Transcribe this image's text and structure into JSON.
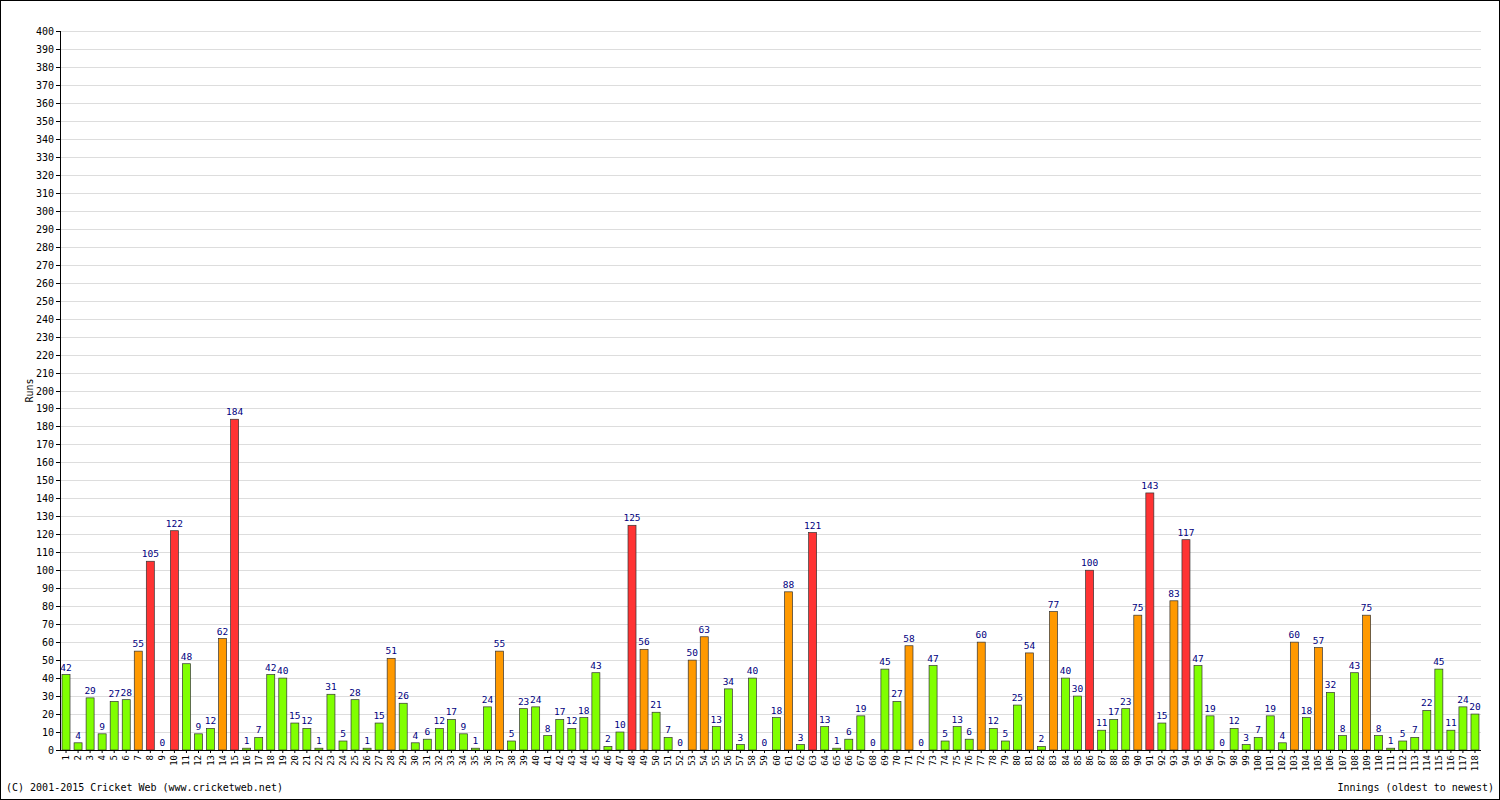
{
  "chart_data": {
    "type": "bar",
    "y_label": "Runs",
    "x_label": "Innings (oldest to newest)",
    "annotations": [
      "(C) 2001-2015 Cricket Web (www.cricketweb.net)"
    ],
    "categories": [
      "1",
      "2",
      "3",
      "4",
      "5",
      "6",
      "7",
      "8",
      "9",
      "10",
      "11",
      "12",
      "13",
      "14",
      "15",
      "16",
      "17",
      "18",
      "19",
      "20",
      "21",
      "22",
      "23",
      "24",
      "25",
      "26",
      "27",
      "28",
      "29",
      "30",
      "31",
      "32",
      "33",
      "34",
      "35",
      "36",
      "37",
      "38",
      "39",
      "40",
      "41",
      "42",
      "43",
      "44",
      "45",
      "46",
      "47",
      "48",
      "49",
      "50",
      "51",
      "52",
      "53",
      "54",
      "55",
      "56",
      "57",
      "58",
      "59",
      "60",
      "61",
      "62",
      "63",
      "64",
      "65",
      "66",
      "67",
      "68",
      "69",
      "70",
      "71",
      "72",
      "73",
      "74",
      "75",
      "76",
      "77",
      "78",
      "79",
      "80",
      "81",
      "82",
      "83",
      "84",
      "85",
      "86",
      "87",
      "88",
      "89",
      "90",
      "91",
      "92",
      "93",
      "94",
      "95",
      "96",
      "97",
      "98",
      "99",
      "100",
      "101",
      "102",
      "103",
      "104",
      "105",
      "106",
      "107",
      "108",
      "109",
      "110",
      "111",
      "112",
      "113",
      "114",
      "115",
      "116",
      "117",
      "118"
    ],
    "values": [
      42,
      4,
      29,
      9,
      27,
      28,
      55,
      105,
      0,
      122,
      48,
      9,
      12,
      62,
      184,
      1,
      7,
      42,
      40,
      15,
      12,
      1,
      31,
      5,
      28,
      1,
      15,
      51,
      26,
      4,
      6,
      12,
      17,
      9,
      1,
      24,
      55,
      5,
      23,
      24,
      8,
      17,
      12,
      18,
      43,
      2,
      10,
      125,
      56,
      21,
      7,
      0,
      50,
      63,
      13,
      34,
      3,
      40,
      0,
      18,
      88,
      3,
      121,
      13,
      1,
      6,
      19,
      0,
      45,
      27,
      58,
      0,
      47,
      5,
      13,
      6,
      60,
      12,
      5,
      25,
      54,
      2,
      77,
      40,
      30,
      100,
      11,
      17,
      23,
      75,
      143,
      15,
      83,
      117,
      47,
      19,
      0,
      12,
      3,
      7,
      19,
      4,
      60,
      18,
      57,
      32,
      8,
      43,
      75,
      8,
      1,
      5,
      7,
      22,
      45,
      11,
      24,
      20
    ],
    "colors": [
      "#80ff00",
      "#80ff00",
      "#80ff00",
      "#80ff00",
      "#80ff00",
      "#80ff00",
      "#ff9900",
      "#ff3333",
      "#80ff00",
      "#ff3333",
      "#80ff00",
      "#80ff00",
      "#80ff00",
      "#ff9900",
      "#ff3333",
      "#80ff00",
      "#80ff00",
      "#80ff00",
      "#80ff00",
      "#80ff00",
      "#80ff00",
      "#80ff00",
      "#80ff00",
      "#80ff00",
      "#80ff00",
      "#80ff00",
      "#80ff00",
      "#ff9900",
      "#80ff00",
      "#80ff00",
      "#80ff00",
      "#80ff00",
      "#80ff00",
      "#80ff00",
      "#80ff00",
      "#80ff00",
      "#ff9900",
      "#80ff00",
      "#80ff00",
      "#80ff00",
      "#80ff00",
      "#80ff00",
      "#80ff00",
      "#80ff00",
      "#80ff00",
      "#80ff00",
      "#80ff00",
      "#ff3333",
      "#ff9900",
      "#80ff00",
      "#80ff00",
      "#80ff00",
      "#ff9900",
      "#ff9900",
      "#80ff00",
      "#80ff00",
      "#80ff00",
      "#80ff00",
      "#80ff00",
      "#80ff00",
      "#ff9900",
      "#80ff00",
      "#ff3333",
      "#80ff00",
      "#80ff00",
      "#80ff00",
      "#80ff00",
      "#80ff00",
      "#80ff00",
      "#80ff00",
      "#ff9900",
      "#80ff00",
      "#80ff00",
      "#80ff00",
      "#80ff00",
      "#80ff00",
      "#ff9900",
      "#80ff00",
      "#80ff00",
      "#80ff00",
      "#ff9900",
      "#80ff00",
      "#ff9900",
      "#80ff00",
      "#80ff00",
      "#ff3333",
      "#80ff00",
      "#80ff00",
      "#80ff00",
      "#ff9900",
      "#ff3333",
      "#80ff00",
      "#ff9900",
      "#ff3333",
      "#80ff00",
      "#80ff00",
      "#80ff00",
      "#80ff00",
      "#80ff00",
      "#80ff00",
      "#80ff00",
      "#80ff00",
      "#ff9900",
      "#80ff00",
      "#ff9900",
      "#80ff00",
      "#80ff00",
      "#80ff00",
      "#ff9900",
      "#80ff00",
      "#80ff00",
      "#80ff00",
      "#80ff00",
      "#80ff00",
      "#80ff00",
      "#80ff00",
      "#80ff00",
      "#80ff00"
    ],
    "ylim": [
      0,
      400
    ],
    "yticks": [
      0,
      10,
      20,
      30,
      40,
      50,
      60,
      70,
      80,
      90,
      100,
      110,
      120,
      130,
      140,
      150,
      160,
      170,
      180,
      190,
      200,
      210,
      220,
      230,
      240,
      250,
      260,
      270,
      280,
      290,
      300,
      310,
      320,
      330,
      340,
      350,
      360,
      370,
      380,
      390,
      400
    ],
    "grid": true,
    "data_labels": true,
    "tick_labels": true
  }
}
